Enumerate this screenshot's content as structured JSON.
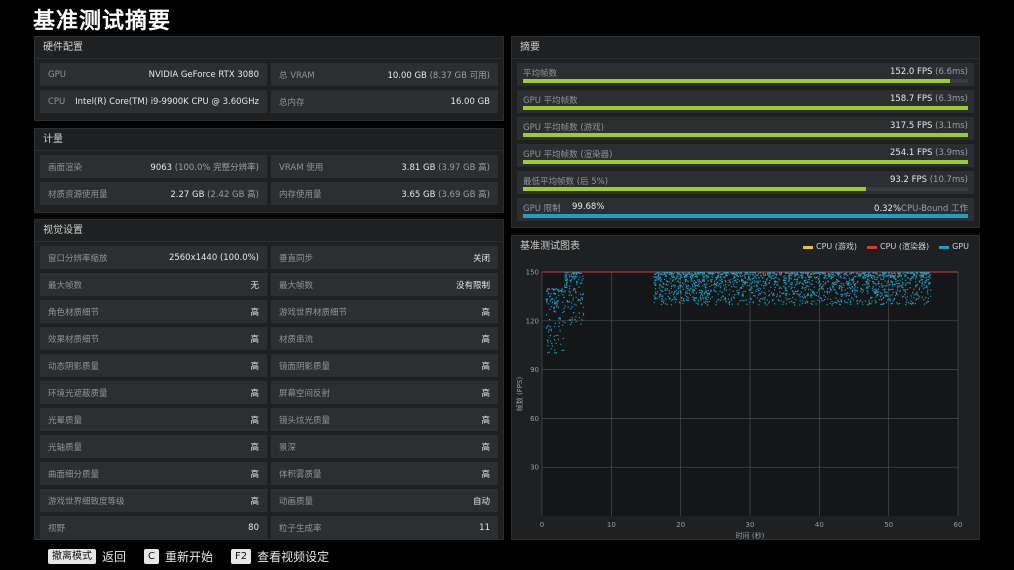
{
  "page_title": "基准测试摘要",
  "hardware": {
    "title": "硬件配置",
    "rows": [
      {
        "k": "GPU",
        "v": "NVIDIA GeForce RTX 3080",
        "sub": ""
      },
      {
        "k": "总 VRAM",
        "v": "10.00 GB",
        "sub": "(8.37 GB 可用)"
      },
      {
        "k": "CPU",
        "v": "Intel(R) Core(TM) i9-9900K CPU @ 3.60GHz",
        "sub": ""
      },
      {
        "k": "总内存",
        "v": "16.00 GB",
        "sub": ""
      }
    ]
  },
  "metrics": {
    "title": "计量",
    "rows": [
      {
        "k": "画面渲染",
        "v": "9063",
        "sub": "(100.0% 完整分辨率)"
      },
      {
        "k": "VRAM 使用",
        "v": "3.81 GB",
        "sub": "(3.97 GB 高)"
      },
      {
        "k": "材质资源使用量",
        "v": "2.27 GB",
        "sub": "(2.42 GB 高)"
      },
      {
        "k": "内存使用量",
        "v": "3.65 GB",
        "sub": "(3.69 GB 高)"
      }
    ]
  },
  "video": {
    "title": "视觉设置",
    "rows": [
      {
        "k": "窗口分辨率缩放",
        "v": "2560x1440 (100.0%)"
      },
      {
        "k": "垂直同步",
        "v": "关闭"
      },
      {
        "k": "最大帧数",
        "v": "无"
      },
      {
        "k": "最大帧数",
        "v": "没有限制"
      },
      {
        "k": "角色材质细节",
        "v": "高"
      },
      {
        "k": "游戏世界材质细节",
        "v": "高"
      },
      {
        "k": "效果材质细节",
        "v": "高"
      },
      {
        "k": "材质串流",
        "v": "高"
      },
      {
        "k": "动态阴影质量",
        "v": "高"
      },
      {
        "k": "镜面阴影质量",
        "v": "高"
      },
      {
        "k": "环境光遮蔽质量",
        "v": "高"
      },
      {
        "k": "屏幕空间反射",
        "v": "高"
      },
      {
        "k": "光晕质量",
        "v": "高"
      },
      {
        "k": "镜头炫光质量",
        "v": "高"
      },
      {
        "k": "光轴质量",
        "v": "高"
      },
      {
        "k": "景深",
        "v": "高"
      },
      {
        "k": "曲面细分质量",
        "v": "高"
      },
      {
        "k": "体积雾质量",
        "v": "高"
      },
      {
        "k": "游戏世界细致度等级",
        "v": "高"
      },
      {
        "k": "动画质量",
        "v": "自动"
      },
      {
        "k": "视野",
        "v": "80"
      },
      {
        "k": "粒子生成率",
        "v": "11"
      }
    ]
  },
  "summary": {
    "title": "摘要",
    "rows": [
      {
        "k": "平均帧数",
        "v": "152.0 FPS",
        "sub": "(6.6ms)",
        "fill": 0.96
      },
      {
        "k": "GPU 平均帧数",
        "v": "158.7 FPS",
        "sub": "(6.3ms)",
        "fill": 1.0
      },
      {
        "k": "GPU 平均帧数 (游戏)",
        "v": "317.5 FPS",
        "sub": "(3.1ms)",
        "fill": 1.0
      },
      {
        "k": "GPU 平均帧数 (渲染器)",
        "v": "254.1 FPS",
        "sub": "(3.9ms)",
        "fill": 1.0
      },
      {
        "k": "最低平均帧数 (后 5%)",
        "v": "93.2 FPS",
        "sub": "(10.7ms)",
        "fill": 0.77
      }
    ],
    "gpu_limit": {
      "k": "GPU 限制",
      "pct": "99.68%",
      "right_pct": "0.32%",
      "right_label": "CPU-Bound 工作",
      "fill": 0.9968
    }
  },
  "chart": {
    "title": "基准测试图表",
    "legend": [
      {
        "name": "CPU (游戏)",
        "color": "#e8c33a"
      },
      {
        "name": "CPU (渲染器)",
        "color": "#d8383c"
      },
      {
        "name": "GPU",
        "color": "#17a2c6"
      }
    ]
  },
  "chart_data": {
    "type": "scatter",
    "xlabel": "时间 (秒)",
    "ylabel": "帧数 (FPS)",
    "xlim": [
      0,
      60
    ],
    "ylim": [
      0,
      150
    ],
    "x_ticks": [
      0,
      10,
      20,
      30,
      40,
      50,
      60
    ],
    "y_ticks": [
      30,
      60,
      90,
      120,
      150
    ],
    "limit_line": 150,
    "series": [
      {
        "name": "GPU",
        "color": "#17a2c6",
        "clusters": [
          {
            "x": [
              0.5,
              3.2
            ],
            "y": [
              100,
              140
            ]
          },
          {
            "x": [
              3.2,
              6.0
            ],
            "y": [
              118,
              150
            ]
          },
          {
            "x": [
              16.0,
              56.0
            ],
            "y": [
              130,
              150
            ]
          }
        ]
      }
    ]
  },
  "footer": {
    "items": [
      {
        "key": "撤离模式",
        "label": "返回"
      },
      {
        "key": "C",
        "label": "重新开始"
      },
      {
        "key": "F2",
        "label": "查看视频设定"
      }
    ]
  }
}
